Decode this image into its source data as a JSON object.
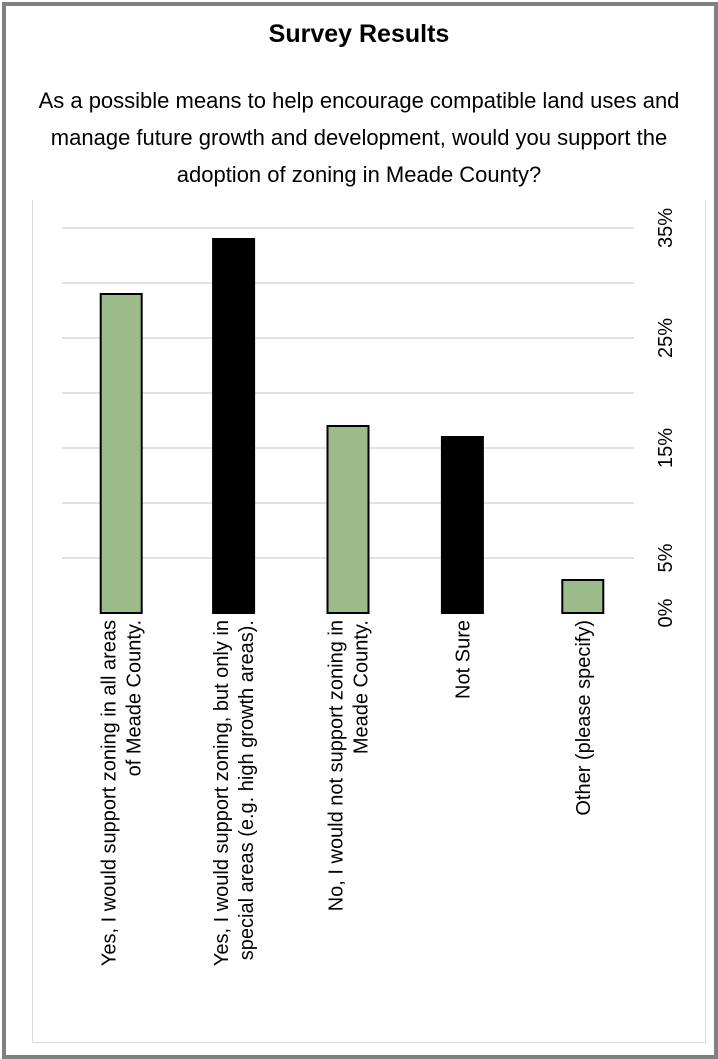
{
  "header": {
    "title": "Survey Results",
    "question": "As a possible means to help encourage compatible land uses and manage future growth and development, would you support the adoption of zoning in Meade County?"
  },
  "chart_data": {
    "type": "bar",
    "title": "Survey Results",
    "categories": [
      [
        "Yes, I would support zoning in all areas",
        "of Meade County."
      ],
      [
        "Yes, I would support zoning, but only in",
        "special areas (e.g. high growth areas)."
      ],
      [
        "No, I would not support zoning in",
        "Meade County."
      ],
      [
        "Not Sure"
      ],
      [
        "Other (please specify)"
      ]
    ],
    "values": [
      29,
      34,
      17,
      16,
      3
    ],
    "colors": [
      "#9bbb8a",
      "#000000",
      "#9bbb8a",
      "#000000",
      "#9bbb8a"
    ],
    "ylim": [
      0,
      35
    ],
    "yticks": [
      "0%",
      "5%",
      "15%",
      "25%",
      "35%"
    ],
    "ytick_values": [
      0,
      5,
      15,
      25,
      35
    ],
    "gridlines": [
      5,
      10,
      15,
      20,
      25,
      30,
      35
    ],
    "grid": true,
    "xlabel": "",
    "ylabel": ""
  }
}
